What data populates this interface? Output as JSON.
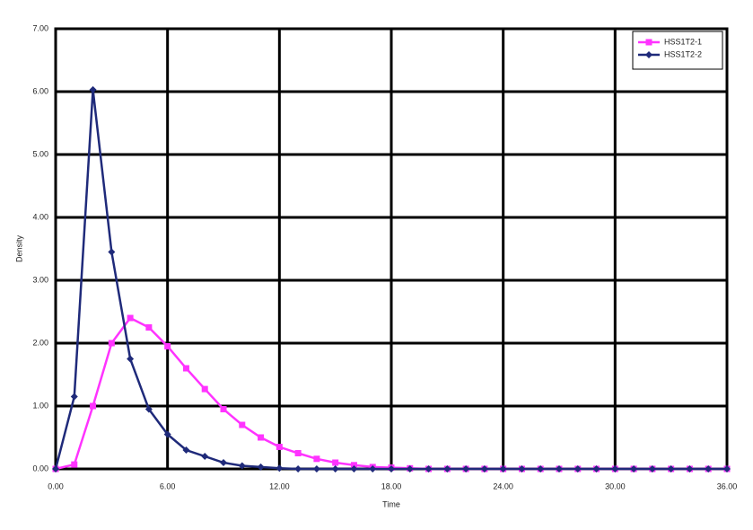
{
  "chart_data": {
    "type": "line",
    "x_label": "Time",
    "y_label": "Density",
    "x": [
      0,
      1,
      2,
      3,
      4,
      5,
      6,
      7,
      8,
      9,
      10,
      11,
      12,
      13,
      14,
      15,
      16,
      17,
      18,
      19,
      20,
      21,
      22,
      23,
      24,
      25,
      26,
      27,
      28,
      29,
      30,
      31,
      32,
      33,
      34,
      35,
      36
    ],
    "series": [
      {
        "name": "HSS1T2-1",
        "color": "#ff33ff",
        "marker": "square",
        "values": [
          0,
          0.07,
          1.0,
          2.0,
          2.4,
          2.25,
          1.95,
          1.6,
          1.27,
          0.95,
          0.7,
          0.5,
          0.35,
          0.25,
          0.16,
          0.1,
          0.06,
          0.03,
          0.02,
          0.01,
          0,
          0,
          0,
          0,
          0,
          0,
          0,
          0,
          0,
          0,
          0,
          0,
          0,
          0,
          0,
          0,
          0
        ]
      },
      {
        "name": "HSS1T2-2",
        "color": "#1f2a7a",
        "marker": "diamond",
        "values": [
          0,
          1.15,
          6.03,
          3.45,
          1.75,
          0.95,
          0.55,
          0.3,
          0.2,
          0.1,
          0.05,
          0.03,
          0.01,
          0,
          0,
          0,
          0,
          0,
          0,
          0,
          0,
          0,
          0,
          0,
          0,
          0,
          0,
          0,
          0,
          0,
          0,
          0,
          0,
          0,
          0,
          0,
          0
        ]
      }
    ],
    "xlim": [
      0,
      36
    ],
    "xticks": [
      {
        "value": 0,
        "label": "0.00"
      },
      {
        "value": 6,
        "label": "6.00"
      },
      {
        "value": 12,
        "label": "12.00"
      },
      {
        "value": 18,
        "label": "18.00"
      },
      {
        "value": 24,
        "label": "24.00"
      },
      {
        "value": 30,
        "label": "30.00"
      },
      {
        "value": 36,
        "label": "36.00"
      }
    ],
    "ylim": [
      0,
      7
    ],
    "yticks": [
      {
        "value": 0,
        "label": "0.00"
      },
      {
        "value": 1,
        "label": "1.00"
      },
      {
        "value": 2,
        "label": "2.00"
      },
      {
        "value": 3,
        "label": "3.00"
      },
      {
        "value": 4,
        "label": "4.00"
      },
      {
        "value": 5,
        "label": "5.00"
      },
      {
        "value": 6,
        "label": "6.00"
      },
      {
        "value": 7,
        "label": "7.00"
      }
    ],
    "grid": true,
    "legend": "top-right"
  }
}
